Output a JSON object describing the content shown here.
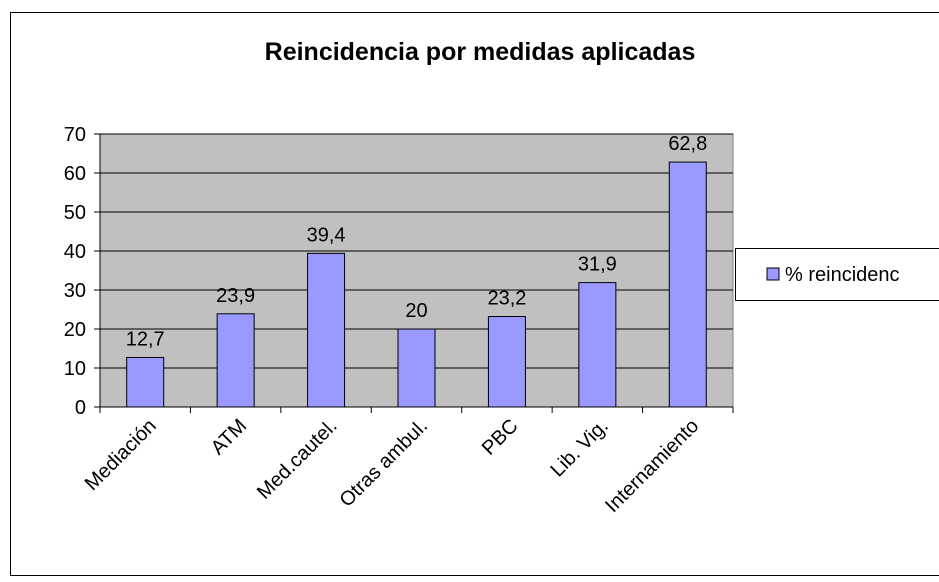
{
  "chart_data": {
    "type": "bar",
    "title": "Reincidencia por medidas aplicadas",
    "categories": [
      "Mediación",
      "ATM",
      "Med.cautel.",
      "Otras ambul.",
      "PBC",
      "Lib. Vig.",
      "Internamiento"
    ],
    "series": [
      {
        "name": "% reincidenc",
        "color": "#9999ff",
        "values": [
          12.7,
          23.9,
          39.4,
          20,
          23.2,
          31.9,
          62.8
        ],
        "value_labels": [
          "12,7",
          "23,9",
          "39,4",
          "20",
          "23,2",
          "31,9",
          "62,8"
        ]
      }
    ],
    "ylim": [
      0,
      70
    ],
    "yticks": [
      0,
      10,
      20,
      30,
      40,
      50,
      60,
      70
    ],
    "grid": true,
    "plot_background": "#c0c0c0",
    "legend": "right"
  }
}
